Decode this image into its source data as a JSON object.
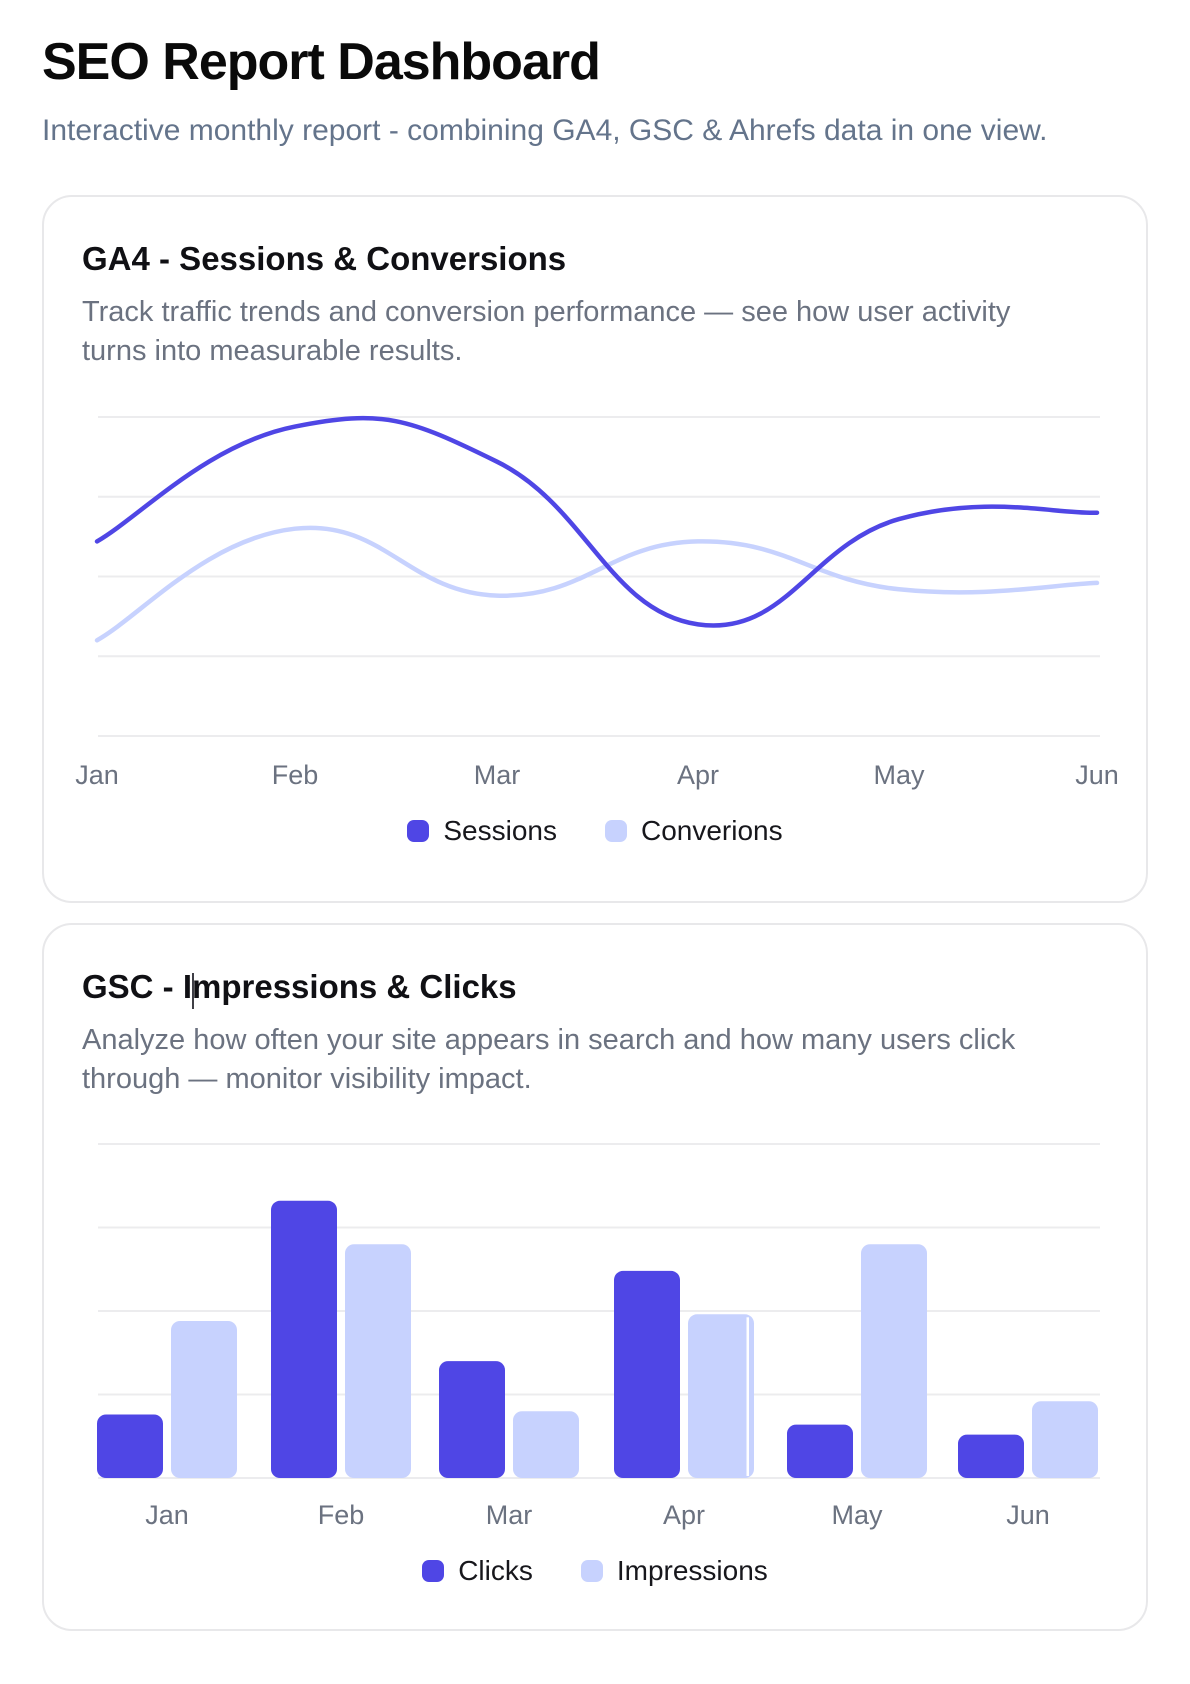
{
  "page": {
    "title": "SEO Report Dashboard",
    "subtitle": "Interactive monthly report - combining GA4, GSC & Ahrefs data in one view."
  },
  "colors": {
    "primary": "#4F46E5",
    "secondary": "#C7D2FE",
    "grid": "#ECECEE",
    "axis_label": "#6B7280",
    "heading": "#0A0A0A",
    "muted_text": "#6B7280",
    "card_border": "#E8E8EA",
    "legend_text": "#17171C"
  },
  "cards": [
    {
      "id": "ga4",
      "title": "GA4 - Sessions & Conversions",
      "description": "Track traffic trends and conversion performance — see how user activity turns into measurable results."
    },
    {
      "id": "gsc",
      "title": "GSC - Impressions & Clicks",
      "description": "Analyze how often your site appears in search and how many users click through — monitor visibility impact."
    }
  ],
  "chart_data": [
    {
      "type": "line",
      "title": "GA4 - Sessions & Conversions",
      "categories": [
        "Jan",
        "Feb",
        "Mar",
        "Apr",
        "May",
        "Jun"
      ],
      "series": [
        {
          "name": "Sessions",
          "color": "#4F46E5",
          "values": [
            61,
            97,
            86,
            35,
            68,
            70
          ]
        },
        {
          "name": "Converions",
          "color": "#C7D2FE",
          "values": [
            30,
            65,
            44,
            61,
            46,
            48
          ]
        }
      ],
      "ylim": [
        0,
        106
      ],
      "grid": true,
      "gridline_values": [
        0,
        25,
        50,
        75,
        100
      ],
      "y_axis_labels_visible": false,
      "legend_position": "bottom",
      "line_style": "smooth"
    },
    {
      "type": "bar",
      "title": "GSC - Impressions & Clicks",
      "categories": [
        "Jan",
        "Feb",
        "Mar",
        "Apr",
        "May",
        "Jun"
      ],
      "series": [
        {
          "name": "Clicks",
          "color": "#4F46E5",
          "values": [
            19,
            83,
            35,
            62,
            16,
            13
          ]
        },
        {
          "name": "Impressions",
          "color": "#C7D2FE",
          "values": [
            47,
            70,
            20,
            49,
            70,
            23
          ]
        }
      ],
      "ylim": [
        0,
        106
      ],
      "grid": true,
      "gridline_values": [
        0,
        25,
        50,
        75,
        100
      ],
      "y_axis_labels_visible": false,
      "legend_position": "bottom",
      "render_artifact": {
        "series": "Impressions",
        "category": "Apr",
        "note": "thin white split near right edge of bar"
      }
    }
  ]
}
